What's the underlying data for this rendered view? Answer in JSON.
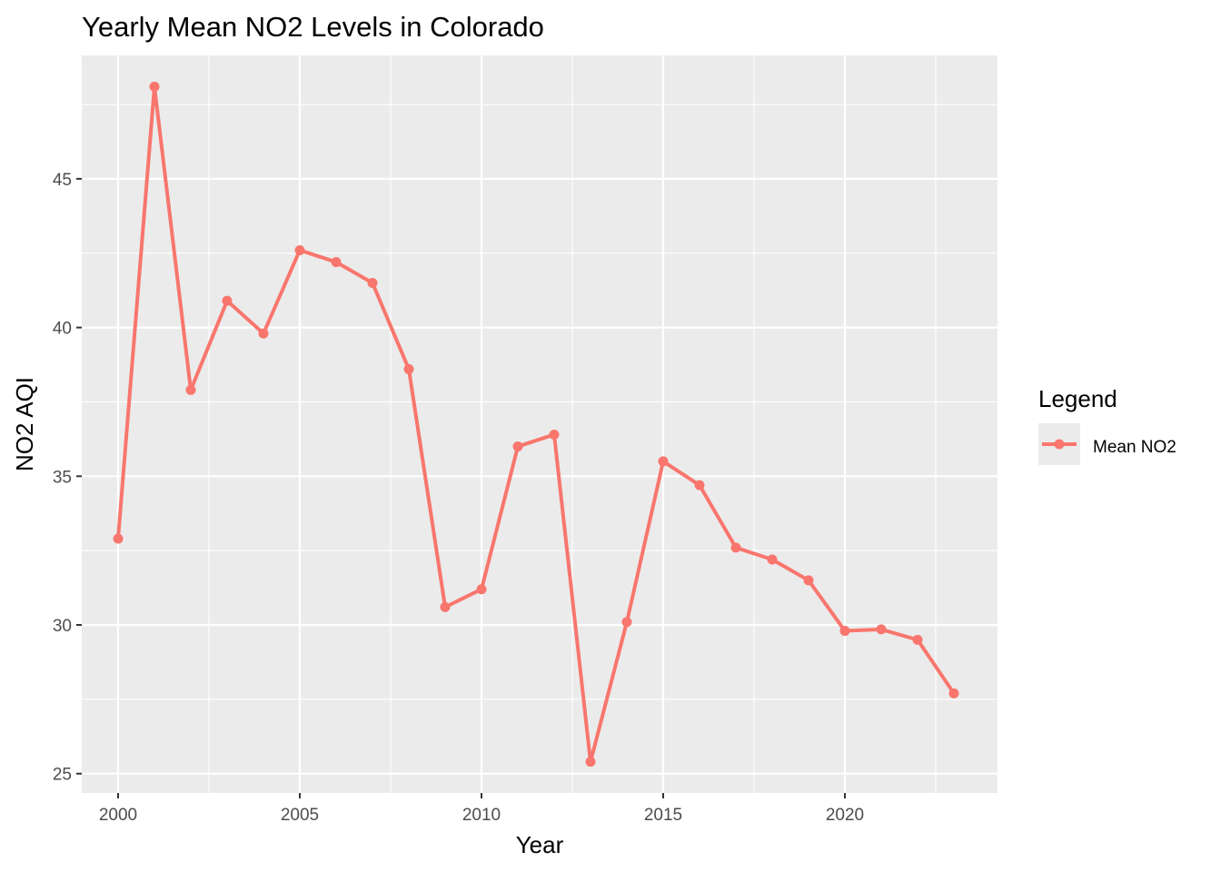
{
  "chart_data": {
    "type": "line",
    "title": "Yearly Mean NO2 Levels in Colorado",
    "xlabel": "Year",
    "ylabel": "NO2 AQI",
    "x": [
      2000,
      2001,
      2002,
      2003,
      2004,
      2005,
      2006,
      2007,
      2008,
      2009,
      2010,
      2011,
      2012,
      2013,
      2014,
      2015,
      2016,
      2017,
      2018,
      2019,
      2020,
      2021,
      2022,
      2023
    ],
    "series": [
      {
        "name": "Mean NO2",
        "color": "#f8766d",
        "values": [
          32.9,
          48.1,
          37.9,
          40.9,
          39.8,
          42.6,
          42.2,
          41.5,
          38.6,
          30.6,
          31.2,
          36.0,
          36.4,
          25.4,
          30.1,
          35.5,
          34.7,
          32.6,
          32.2,
          31.5,
          29.8,
          29.85,
          29.5,
          27.7
        ]
      }
    ],
    "xlim": [
      1999.0,
      2024.2
    ],
    "ylim": [
      24.35,
      49.15
    ],
    "xticks": [
      2000,
      2005,
      2010,
      2015,
      2020
    ],
    "xtick_labels": [
      "2000",
      "2005",
      "2010",
      "2015",
      "2020"
    ],
    "yticks": [
      25,
      30,
      35,
      40,
      45
    ],
    "ytick_labels": [
      "25",
      "30",
      "35",
      "40",
      "45"
    ],
    "grid": true,
    "legend": {
      "title": "Legend",
      "position": "right"
    },
    "panel_color": "#ebebeb",
    "grid_color": "#ffffff"
  }
}
